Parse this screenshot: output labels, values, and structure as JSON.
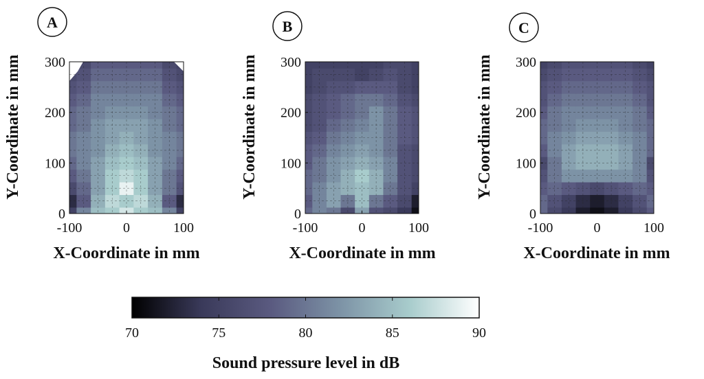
{
  "chart_data": [
    {
      "type": "heatmap",
      "panel_label": "A",
      "xlabel": "X-Coordinate in mm",
      "ylabel": "Y-Coordinate in mm",
      "xlim": [
        -100,
        100
      ],
      "ylim": [
        0,
        300
      ],
      "xticks": [
        "-100",
        "0",
        "100"
      ],
      "yticks": [
        "0",
        "100",
        "200",
        "300"
      ],
      "grid": true,
      "x": [
        -100,
        -75,
        -50,
        -25,
        0,
        25,
        50,
        75,
        100
      ],
      "y": [
        0,
        25,
        50,
        75,
        100,
        125,
        150,
        175,
        200,
        225,
        250,
        275,
        300
      ],
      "z": [
        [
          75,
          81,
          85,
          86,
          88,
          86,
          85,
          81,
          75
        ],
        [
          73,
          78,
          84,
          87,
          86,
          87,
          84,
          78,
          73
        ],
        [
          76,
          79,
          83,
          86,
          89,
          86,
          83,
          80,
          77
        ],
        [
          78,
          80,
          83,
          86,
          87,
          86,
          83,
          80,
          78
        ],
        [
          79,
          81,
          83,
          85,
          86,
          85,
          83,
          81,
          79
        ],
        [
          80,
          81,
          82,
          84,
          85,
          84,
          82,
          81,
          80
        ],
        [
          80,
          81,
          82,
          83,
          84,
          83,
          82,
          81,
          80
        ],
        [
          79,
          80,
          82,
          83,
          83,
          83,
          82,
          80,
          79
        ],
        [
          79,
          80,
          81,
          82,
          82,
          82,
          81,
          80,
          79
        ],
        [
          78,
          79,
          81,
          81,
          81,
          81,
          81,
          79,
          78
        ],
        [
          77,
          78,
          80,
          80,
          80,
          80,
          80,
          78,
          77
        ],
        [
          76,
          77,
          79,
          79,
          79,
          79,
          79,
          77,
          76
        ],
        [
          75,
          76,
          78,
          78,
          78,
          78,
          78,
          76,
          75
        ]
      ]
    },
    {
      "type": "heatmap",
      "panel_label": "B",
      "xlabel": "X-Coordinate in mm",
      "ylabel": "Y-Coordinate in mm",
      "xlim": [
        -100,
        100
      ],
      "ylim": [
        0,
        300
      ],
      "xticks": [
        "-100",
        "0",
        "100"
      ],
      "yticks": [
        "0",
        "100",
        "200",
        "300"
      ],
      "grid": true,
      "x": [
        -100,
        -75,
        -50,
        -25,
        0,
        25,
        50,
        75,
        100
      ],
      "y": [
        0,
        25,
        50,
        75,
        100,
        125,
        150,
        175,
        200,
        225,
        250,
        275,
        300
      ],
      "z": [
        [
          79,
          81,
          80,
          76,
          83,
          77,
          76,
          74,
          71
        ],
        [
          78,
          81,
          83,
          80,
          85,
          80,
          78,
          76,
          72
        ],
        [
          79,
          81,
          83,
          84,
          85,
          84,
          80,
          77,
          75
        ],
        [
          79,
          80,
          82,
          84,
          86,
          84,
          81,
          77,
          76
        ],
        [
          78,
          80,
          82,
          83,
          84,
          83,
          81,
          77,
          76
        ],
        [
          78,
          79,
          81,
          82,
          83,
          82,
          80,
          77,
          76
        ],
        [
          77,
          78,
          80,
          81,
          82,
          82,
          80,
          78,
          77
        ],
        [
          76,
          77,
          79,
          80,
          81,
          82,
          80,
          78,
          77
        ],
        [
          76,
          77,
          78,
          79,
          80,
          82,
          80,
          78,
          77
        ],
        [
          76,
          77,
          78,
          79,
          80,
          80,
          79,
          77,
          76
        ],
        [
          75,
          76,
          77,
          77,
          78,
          78,
          78,
          76,
          75
        ],
        [
          75,
          76,
          76,
          76,
          75,
          76,
          77,
          76,
          75
        ],
        [
          75,
          75,
          75,
          75,
          75,
          75,
          76,
          76,
          75
        ]
      ]
    },
    {
      "type": "heatmap",
      "panel_label": "C",
      "xlabel": "X-Coordinate in mm",
      "ylabel": "Y-Coordinate in mm",
      "xlim": [
        -100,
        100
      ],
      "ylim": [
        0,
        300
      ],
      "xticks": [
        "-100",
        "0",
        "100"
      ],
      "yticks": [
        "0",
        "100",
        "200",
        "300"
      ],
      "grid": true,
      "x": [
        -100,
        -75,
        -50,
        -25,
        0,
        25,
        50,
        75,
        100
      ],
      "y": [
        0,
        25,
        50,
        75,
        100,
        125,
        150,
        175,
        200,
        225,
        250,
        275,
        300
      ],
      "z": [
        [
          79,
          76,
          74,
          72,
          71,
          72,
          74,
          76,
          78
        ],
        [
          79,
          77,
          75,
          73,
          72,
          73,
          75,
          77,
          79
        ],
        [
          78,
          79,
          78,
          77,
          76,
          77,
          78,
          79,
          78
        ],
        [
          77,
          80,
          82,
          82,
          82,
          82,
          82,
          81,
          77
        ],
        [
          76,
          80,
          83,
          84,
          84,
          84,
          83,
          81,
          76
        ],
        [
          78,
          81,
          83,
          84,
          84,
          84,
          83,
          81,
          79
        ],
        [
          79,
          81,
          82,
          83,
          83,
          83,
          82,
          81,
          79
        ],
        [
          79,
          80,
          81,
          82,
          82,
          82,
          81,
          80,
          79
        ],
        [
          78,
          80,
          81,
          81,
          81,
          81,
          81,
          80,
          78
        ],
        [
          77,
          79,
          80,
          80,
          80,
          80,
          80,
          79,
          77
        ],
        [
          77,
          78,
          79,
          79,
          79,
          79,
          79,
          78,
          77
        ],
        [
          76,
          77,
          78,
          78,
          78,
          78,
          78,
          77,
          76
        ],
        [
          75,
          76,
          77,
          77,
          77,
          77,
          77,
          76,
          75
        ]
      ]
    }
  ],
  "colorbar": {
    "label": "Sound pressure level in dB",
    "range": [
      70,
      90
    ],
    "ticks": [
      "70",
      "75",
      "80",
      "85",
      "90"
    ],
    "colormap": [
      "#000000",
      "#3a3a5a",
      "#5a5a80",
      "#7d93a6",
      "#a8cccc",
      "#ffffff"
    ]
  }
}
